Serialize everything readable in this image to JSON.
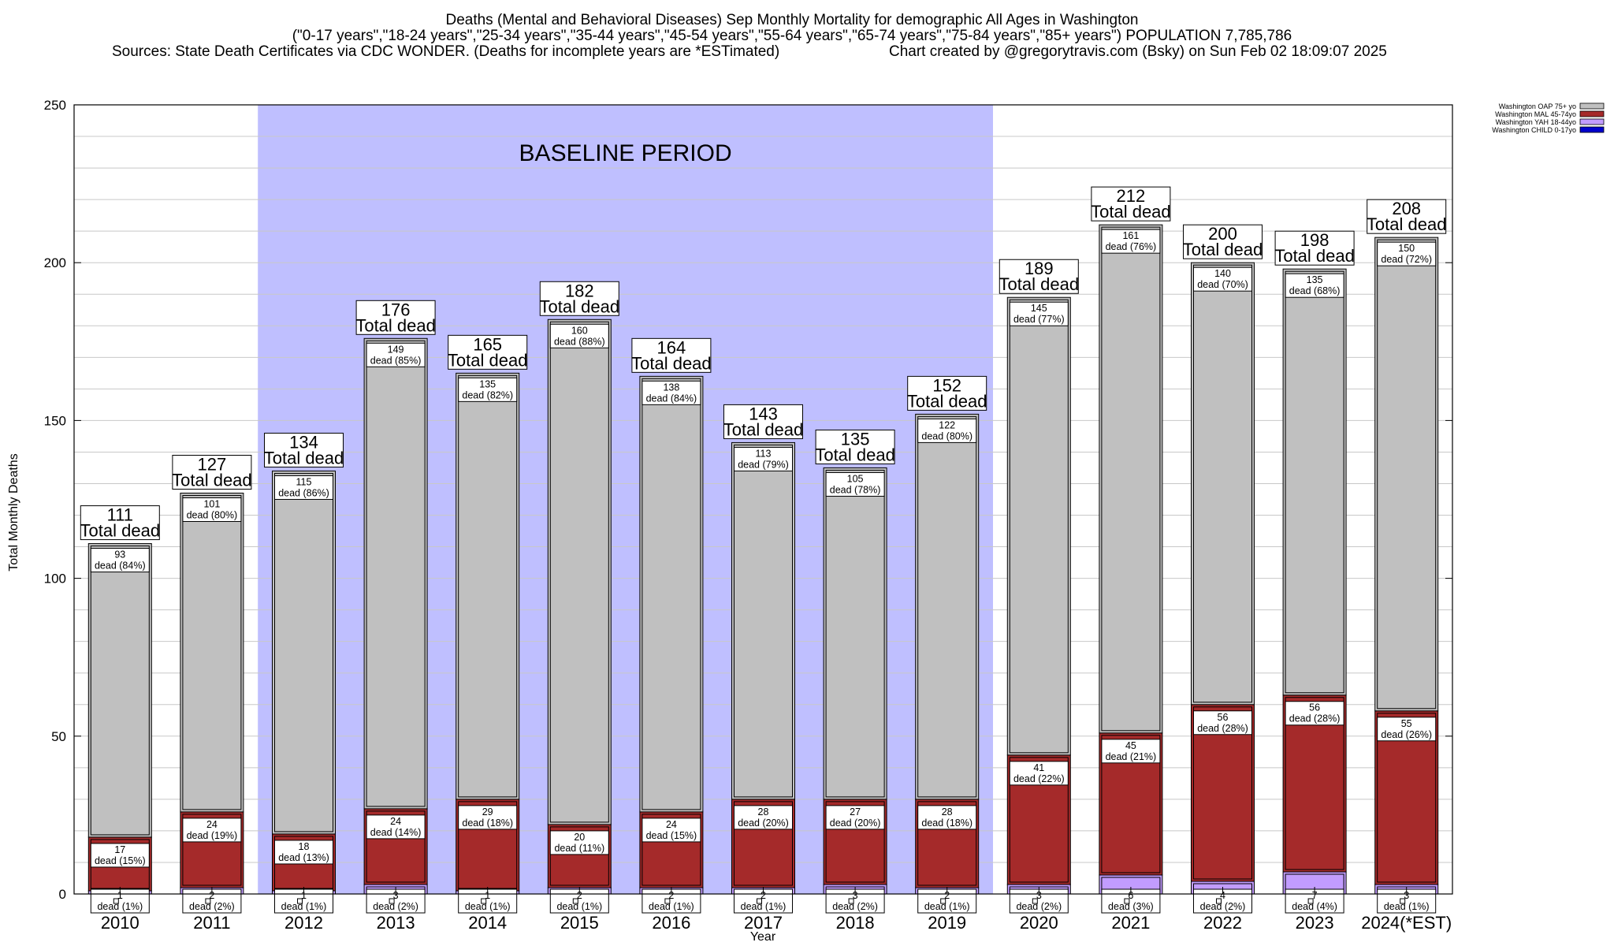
{
  "chart_data": {
    "type": "bar",
    "stacked": true,
    "title": "Deaths (Mental and Behavioral Diseases) Sep Monthly Mortality for demographic All Ages in Washington",
    "subtitle": "(\"0-17 years\",\"18-24 years\",\"25-34 years\",\"35-44 years\",\"45-54 years\",\"55-64 years\",\"65-74 years\",\"75-84 years\",\"85+ years\") POPULATION 7,785,786",
    "source": "Sources: State Death Certificates via CDC WONDER. (Deaths for incomplete years are *ESTimated)",
    "credit": "Chart created by @gregorytravis.com (Bsky) on Sun Feb 02 18:09:07 2025",
    "xlabel": "Year",
    "ylabel": "Total Monthly Deaths",
    "ylim": [
      0,
      250
    ],
    "yticks": [
      "0",
      "50",
      "100",
      "150",
      "200",
      "250"
    ],
    "grid": true,
    "legend_position": "top-right",
    "baseline_label": "BASELINE PERIOD",
    "baseline_range": [
      "2012",
      "2019"
    ],
    "total_label": "Total dead",
    "segment_label": "dead",
    "categories": [
      "2010",
      "2011",
      "2012",
      "2013",
      "2014",
      "2015",
      "2016",
      "2017",
      "2018",
      "2019",
      "2020",
      "2021",
      "2022",
      "2023",
      "2024(*EST)"
    ],
    "totals": [
      111,
      127,
      134,
      176,
      165,
      182,
      164,
      143,
      135,
      152,
      189,
      212,
      200,
      198,
      208
    ],
    "series": [
      {
        "name": "Washington CHILD 0-17yo",
        "color": "#0000cc",
        "values": [
          0,
          0,
          0,
          0,
          0,
          0,
          0,
          0,
          0,
          0,
          0,
          0,
          0,
          0,
          0
        ]
      },
      {
        "name": "Washington YAH 18-44yo",
        "color": "#c29cff",
        "values": [
          1,
          2,
          1,
          3,
          1,
          2,
          2,
          2,
          3,
          2,
          3,
          6,
          4,
          7,
          3
        ],
        "labels": [
          "1",
          "2",
          "1",
          "3",
          "1",
          "2",
          "2",
          "2",
          "3",
          "2",
          "3",
          "6",
          "4",
          "7",
          "3"
        ],
        "pcts": [
          "(1%)",
          "(2%)",
          "(1%)",
          "(2%)",
          "(1%)",
          "(1%)",
          "(1%)",
          "(1%)",
          "(2%)",
          "(1%)",
          "(2%)",
          "(3%)",
          "(2%)",
          "(4%)",
          "(1%)"
        ]
      },
      {
        "name": "Washington MAL 45-74yo",
        "color": "#a52a2a",
        "values": [
          17,
          24,
          18,
          24,
          29,
          20,
          24,
          28,
          27,
          28,
          41,
          45,
          56,
          56,
          55
        ],
        "labels": [
          "17",
          "24",
          "18",
          "24",
          "29",
          "20",
          "24",
          "28",
          "27",
          "28",
          "41",
          "45",
          "56",
          "56",
          "55"
        ],
        "pcts": [
          "(15%)",
          "(19%)",
          "(13%)",
          "(14%)",
          "(18%)",
          "(11%)",
          "(15%)",
          "(20%)",
          "(20%)",
          "(18%)",
          "(22%)",
          "(21%)",
          "(28%)",
          "(28%)",
          "(26%)"
        ]
      },
      {
        "name": "Washington OAP 75+ yo",
        "color": "#c0c0c0",
        "values": [
          93,
          101,
          115,
          149,
          135,
          160,
          138,
          113,
          105,
          122,
          145,
          161,
          140,
          135,
          150
        ],
        "labels": [
          "93",
          "101",
          "115",
          "149",
          "135",
          "160",
          "138",
          "113",
          "105",
          "122",
          "145",
          "161",
          "140",
          "135",
          "150"
        ],
        "pcts": [
          "(84%)",
          "(80%)",
          "(86%)",
          "(85%)",
          "(82%)",
          "(88%)",
          "(84%)",
          "(79%)",
          "(78%)",
          "(80%)",
          "(77%)",
          "(76%)",
          "(70%)",
          "(68%)",
          "(72%)"
        ]
      }
    ]
  }
}
